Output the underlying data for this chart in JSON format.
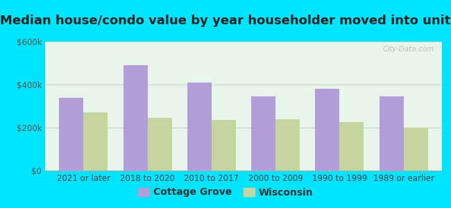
{
  "title": "Median house/condo value by year householder moved into unit",
  "categories": [
    "2021 or later",
    "2018 to 2020",
    "2010 to 2017",
    "2000 to 2009",
    "1990 to 1999",
    "1989 or earlier"
  ],
  "cottage_grove": [
    340000,
    490000,
    410000,
    345000,
    380000,
    345000
  ],
  "wisconsin": [
    270000,
    245000,
    235000,
    240000,
    225000,
    200000
  ],
  "cottage_grove_color": "#b39ddb",
  "wisconsin_color": "#c5d5a0",
  "background_outer": "#00e5ff",
  "background_inner": "#e8f5e9",
  "ylim": [
    0,
    600000
  ],
  "yticks": [
    0,
    200000,
    400000,
    600000
  ],
  "ytick_labels": [
    "$0",
    "$200k",
    "$400k",
    "$600k"
  ],
  "legend_labels": [
    "Cottage Grove",
    "Wisconsin"
  ],
  "bar_width": 0.38,
  "title_fontsize": 13,
  "tick_fontsize": 8.5,
  "legend_fontsize": 10
}
